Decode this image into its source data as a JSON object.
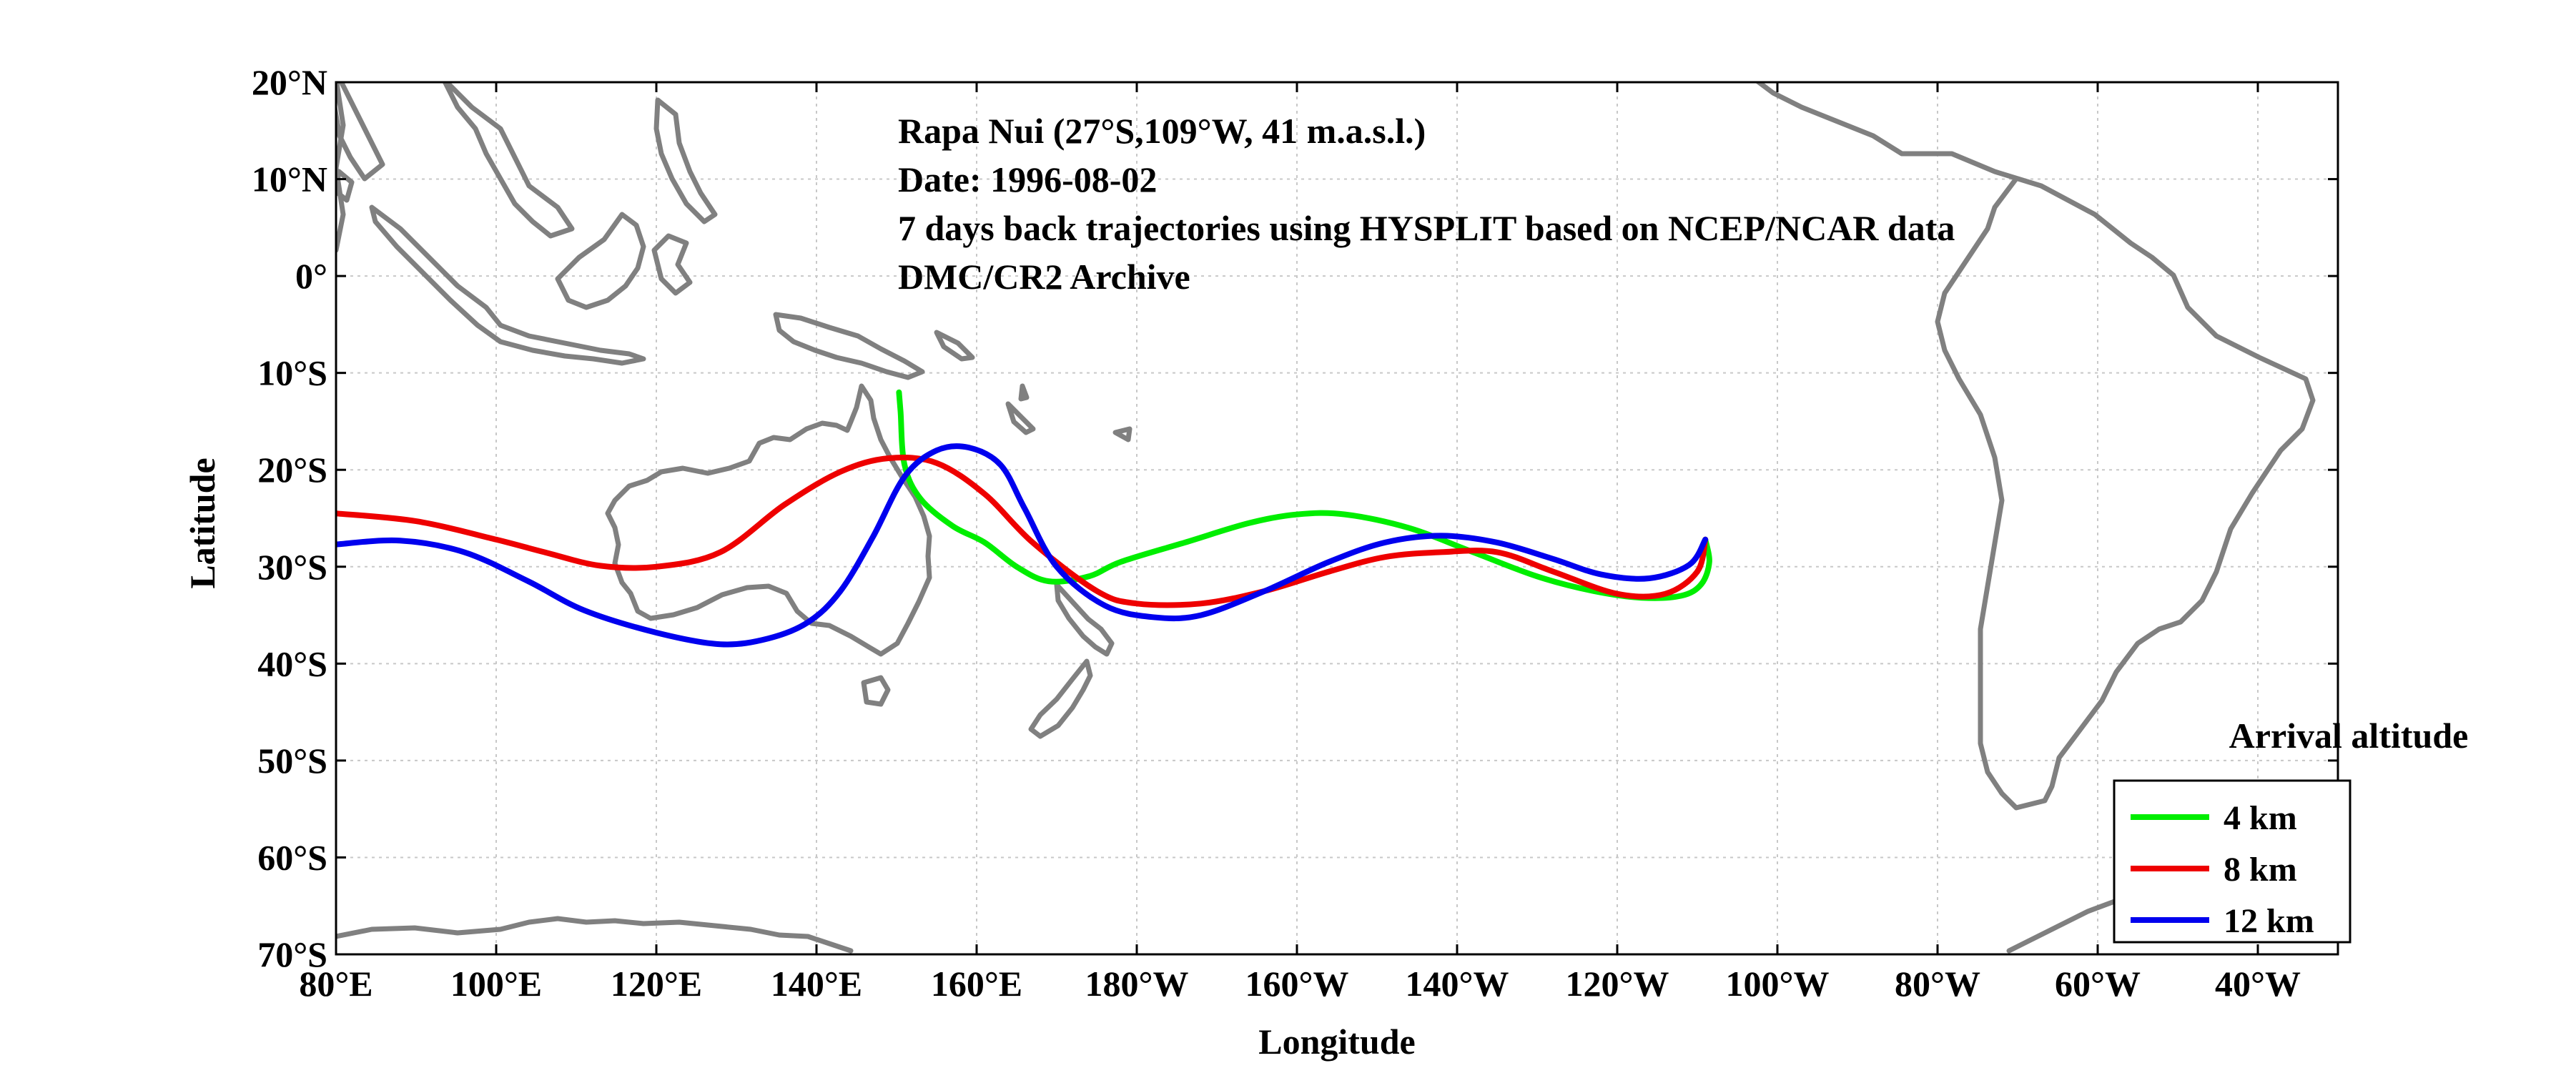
{
  "info": {
    "line1": "Rapa Nui (27°S,109°W, 41 m.a.s.l.)",
    "line2": "Date: 1996-08-02",
    "line3": "7 days back trajectories using HYSPLIT based on NCEP/NCAR data",
    "line4": "DMC/CR2 Archive"
  },
  "axes": {
    "xlabel": "Longitude",
    "ylabel": "Latitude",
    "xlim_deg_east": [
      80,
      330
    ],
    "ylim_deg_north": [
      -70,
      20
    ],
    "x_ticks": [
      {
        "value": 80,
        "label": "80°E"
      },
      {
        "value": 100,
        "label": "100°E"
      },
      {
        "value": 120,
        "label": "120°E"
      },
      {
        "value": 140,
        "label": "140°E"
      },
      {
        "value": 160,
        "label": "160°E"
      },
      {
        "value": 180,
        "label": "180°W"
      },
      {
        "value": 200,
        "label": "160°W"
      },
      {
        "value": 220,
        "label": "140°W"
      },
      {
        "value": 240,
        "label": "120°W"
      },
      {
        "value": 260,
        "label": "100°W"
      },
      {
        "value": 280,
        "label": "80°W"
      },
      {
        "value": 300,
        "label": "60°W"
      },
      {
        "value": 320,
        "label": "40°W"
      }
    ],
    "y_ticks": [
      {
        "value": 20,
        "label": "20°N"
      },
      {
        "value": 10,
        "label": "10°N"
      },
      {
        "value": 0,
        "label": "0°"
      },
      {
        "value": -10,
        "label": "10°S"
      },
      {
        "value": -20,
        "label": "20°S"
      },
      {
        "value": -30,
        "label": "30°S"
      },
      {
        "value": -40,
        "label": "40°S"
      },
      {
        "value": -50,
        "label": "50°S"
      },
      {
        "value": -60,
        "label": "60°S"
      },
      {
        "value": -70,
        "label": "70°S"
      }
    ],
    "grid": true
  },
  "legend": {
    "title": "Arrival altitude",
    "position": "bottom-right",
    "items": [
      {
        "label": "4 km",
        "color": "#00ee00"
      },
      {
        "label": "8 km",
        "color": "#ee0000"
      },
      {
        "label": "12 km",
        "color": "#0000ee"
      }
    ]
  },
  "colors": {
    "coast": "#808080",
    "grid": "#c8c8c8"
  },
  "chart_data": {
    "type": "line",
    "series": [
      {
        "name": "4 km",
        "color": "#00ee00",
        "points": [
          [
            251.0,
            -27.2
          ],
          [
            251.5,
            -29.5
          ],
          [
            250.5,
            -31.8
          ],
          [
            248,
            -33.0
          ],
          [
            243,
            -33.2
          ],
          [
            237,
            -32.5
          ],
          [
            230,
            -31.0
          ],
          [
            222,
            -28.5
          ],
          [
            214,
            -26.0
          ],
          [
            206,
            -24.6
          ],
          [
            200,
            -24.6
          ],
          [
            194,
            -25.5
          ],
          [
            186,
            -27.5
          ],
          [
            178,
            -29.5
          ],
          [
            174,
            -31.0
          ],
          [
            169,
            -31.5
          ],
          [
            165,
            -30.0
          ],
          [
            161,
            -27.5
          ],
          [
            157,
            -25.8
          ],
          [
            153,
            -23.0
          ],
          [
            151.0,
            -19.5
          ],
          [
            150.5,
            -14.0
          ],
          [
            150.3,
            -12.0
          ]
        ]
      },
      {
        "name": "8 km",
        "color": "#ee0000",
        "points": [
          [
            251.0,
            -27.2
          ],
          [
            250.0,
            -30.5
          ],
          [
            246,
            -32.8
          ],
          [
            240,
            -32.8
          ],
          [
            232,
            -30.5
          ],
          [
            225,
            -28.5
          ],
          [
            218,
            -28.5
          ],
          [
            211,
            -29.0
          ],
          [
            204,
            -30.5
          ],
          [
            196,
            -32.5
          ],
          [
            188,
            -33.8
          ],
          [
            180,
            -33.8
          ],
          [
            175,
            -32.5
          ],
          [
            167,
            -27.5
          ],
          [
            161,
            -22.5
          ],
          [
            155,
            -19.3
          ],
          [
            149,
            -18.8
          ],
          [
            143,
            -20.2
          ],
          [
            136,
            -23.6
          ],
          [
            128,
            -28.5
          ],
          [
            120,
            -30.0
          ],
          [
            113,
            -29.9
          ],
          [
            106,
            -28.5
          ],
          [
            100,
            -27.2
          ],
          [
            90,
            -25.3
          ],
          [
            80,
            -24.5
          ]
        ]
      },
      {
        "name": "12 km",
        "color": "#0000ee",
        "points": [
          [
            251.0,
            -27.2
          ],
          [
            249.0,
            -29.8
          ],
          [
            244,
            -31.2
          ],
          [
            238,
            -30.8
          ],
          [
            232,
            -29.2
          ],
          [
            225,
            -27.5
          ],
          [
            218,
            -26.8
          ],
          [
            211,
            -27.5
          ],
          [
            204,
            -29.5
          ],
          [
            196,
            -32.5
          ],
          [
            188,
            -35.0
          ],
          [
            182,
            -35.2
          ],
          [
            176,
            -34.0
          ],
          [
            170,
            -30.0
          ],
          [
            166,
            -24.0
          ],
          [
            163,
            -19.5
          ],
          [
            159,
            -17.7
          ],
          [
            155,
            -18.0
          ],
          [
            151,
            -20.7
          ],
          [
            147,
            -27.0
          ],
          [
            143,
            -32.5
          ],
          [
            139,
            -35.7
          ],
          [
            134,
            -37.4
          ],
          [
            128,
            -38.0
          ],
          [
            120,
            -36.8
          ],
          [
            111,
            -34.5
          ],
          [
            104,
            -31.5
          ],
          [
            96,
            -28.5
          ],
          [
            88,
            -27.3
          ],
          [
            80,
            -27.7
          ]
        ]
      }
    ]
  }
}
